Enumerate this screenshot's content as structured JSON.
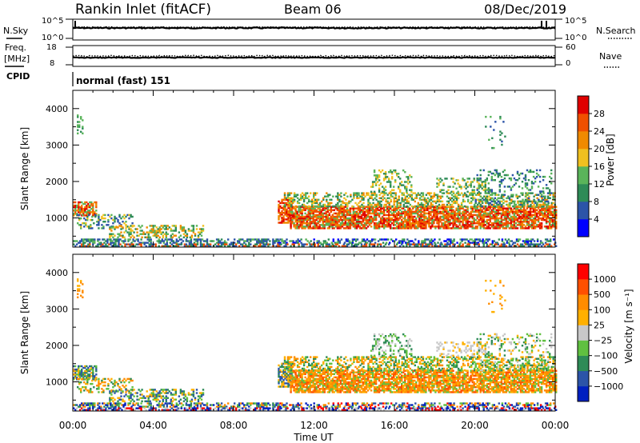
{
  "header": {
    "station": "Rankin Inlet (fitACF)",
    "beam": "Beam 06",
    "date": "08/Dec/2019"
  },
  "top_panels": {
    "nsky": {
      "label": "N.Sky",
      "ticks": [
        "10^5",
        "10^0"
      ]
    },
    "nsearch": {
      "label": "N.Search",
      "ticks": [
        "10^5",
        "10^0"
      ]
    },
    "freq": {
      "label_line1": "Freq.",
      "label_line2": "[MHz]",
      "ticks": [
        "18",
        "8"
      ]
    },
    "nave": {
      "label": "Nave",
      "ticks": [
        "60",
        "0"
      ]
    },
    "cpid": {
      "label": "CPID",
      "value": "normal (fast) 151"
    }
  },
  "colors": {
    "power": [
      "#0000ff",
      "#2c54a8",
      "#2e8b57",
      "#5ab45a",
      "#f0c020",
      "#f08a00",
      "#f05000",
      "#e00000"
    ],
    "velocity": [
      "#ff0000",
      "#ff5000",
      "#ff8c00",
      "#ffb000",
      "#c8c8c8",
      "#60c040",
      "#2e8b57",
      "#2c54a8",
      "#0020c0"
    ]
  },
  "chart_data": [
    {
      "type": "heatmap",
      "name": "power-panel",
      "ylabel": "Slant Range [km]",
      "yticks": [
        "4000",
        "3000",
        "2000",
        "1000"
      ],
      "ylim": [
        200,
        4500
      ],
      "xlim": [
        0,
        24
      ],
      "colorbar": {
        "label": "Power [dB]",
        "ticks": [
          "28",
          "24",
          "20",
          "16",
          "12",
          "8",
          "4"
        ]
      }
    },
    {
      "type": "heatmap",
      "name": "velocity-panel",
      "ylabel": "Slant Range [km]",
      "yticks": [
        "4000",
        "3000",
        "2000",
        "1000"
      ],
      "ylim": [
        200,
        4500
      ],
      "xlim": [
        0,
        24
      ],
      "xlabel": "Time UT",
      "xticks": [
        "00:00",
        "04:00",
        "08:00",
        "12:00",
        "16:00",
        "20:00",
        "00:00"
      ],
      "colorbar": {
        "label": "Velocity [m s⁻¹]",
        "ticks": [
          "1000",
          "500",
          "100",
          "25",
          "−25",
          "−100",
          "−500",
          "−1000"
        ]
      }
    }
  ]
}
